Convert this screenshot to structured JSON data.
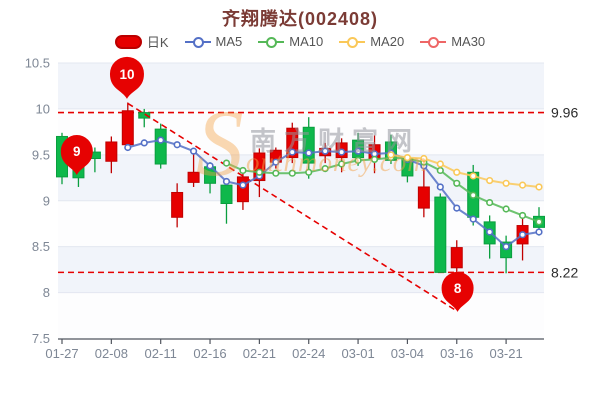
{
  "title": "齐翔腾达(002408)",
  "legend": [
    {
      "label": "日K",
      "type": "rect",
      "color": "#e60000"
    },
    {
      "label": "MA5",
      "type": "line",
      "color": "#5470c6"
    },
    {
      "label": "MA10",
      "type": "line",
      "color": "#55b857"
    },
    {
      "label": "MA20",
      "type": "line",
      "color": "#fac858"
    },
    {
      "label": "MA30",
      "type": "line",
      "color": "#ee6666"
    }
  ],
  "watermark": {
    "cn": "南方财富网",
    "s": "S",
    "en": "outhmoney.com"
  },
  "colors": {
    "title": "#7b3b35",
    "axis_label": "#7e8795",
    "axis_line": "#50555e",
    "grid_line": "#e3e7f0",
    "band_dark": "rgba(210,219,238,0.30)",
    "band_light": "rgba(252,252,254,0.60)",
    "candle_up_fill": "#e60000",
    "candle_up_stroke": "#c00000",
    "candle_down_fill": "#0eb84b",
    "candle_down_stroke": "#0a9e3f",
    "ref_line": "#e60000",
    "ref_label": "#2b2b2b",
    "pin_fill": "#e60202",
    "pin_text": "#ffffff"
  },
  "y_axis": {
    "min": 7.5,
    "max": 10.5,
    "ticks": [
      10.5,
      10,
      9.5,
      9,
      8.5,
      8,
      7.5
    ]
  },
  "x_axis": {
    "labels": [
      {
        "index": 0,
        "label": "01-27"
      },
      {
        "index": 3,
        "label": "02-08"
      },
      {
        "index": 6,
        "label": "02-11"
      },
      {
        "index": 9,
        "label": "02-16"
      },
      {
        "index": 12,
        "label": "02-21"
      },
      {
        "index": 15,
        "label": "02-24"
      },
      {
        "index": 18,
        "label": "03-01"
      },
      {
        "index": 21,
        "label": "03-04"
      },
      {
        "index": 24,
        "label": "03-16"
      },
      {
        "index": 27,
        "label": "03-21"
      }
    ]
  },
  "chart_data": {
    "type": "candlestick",
    "title": "齐翔腾达(002408)",
    "ylim": [
      7.5,
      10.5
    ],
    "grid": true,
    "legend_position": "top",
    "candles": [
      {
        "date": "01-27",
        "open": 9.7,
        "close": 9.26,
        "high": 9.74,
        "low": 9.18
      },
      {
        "date": "",
        "open": 9.4,
        "close": 9.25,
        "high": 9.44,
        "low": 9.15
      },
      {
        "date": "",
        "open": 9.53,
        "close": 9.46,
        "high": 9.58,
        "low": 9.31
      },
      {
        "date": "02-08",
        "open": 9.43,
        "close": 9.64,
        "high": 9.7,
        "low": 9.3
      },
      {
        "date": "",
        "open": 9.61,
        "close": 9.98,
        "high": 10.07,
        "low": 9.57
      },
      {
        "date": "",
        "open": 9.96,
        "close": 9.9,
        "high": 10.0,
        "low": 9.8
      },
      {
        "date": "02-11",
        "open": 9.78,
        "close": 9.4,
        "high": 9.84,
        "low": 9.35
      },
      {
        "date": "",
        "open": 8.82,
        "close": 9.09,
        "high": 9.19,
        "low": 8.71
      },
      {
        "date": "",
        "open": 9.2,
        "close": 9.31,
        "high": 9.52,
        "low": 9.15
      },
      {
        "date": "02-16",
        "open": 9.37,
        "close": 9.19,
        "high": 9.42,
        "low": 9.08
      },
      {
        "date": "",
        "open": 9.17,
        "close": 8.97,
        "high": 9.24,
        "low": 8.75
      },
      {
        "date": "",
        "open": 8.99,
        "close": 9.26,
        "high": 9.31,
        "low": 8.9
      },
      {
        "date": "02-21",
        "open": 9.22,
        "close": 9.52,
        "high": 9.57,
        "low": 9.04
      },
      {
        "date": "",
        "open": 9.42,
        "close": 9.55,
        "high": 9.58,
        "low": 9.35
      },
      {
        "date": "",
        "open": 9.47,
        "close": 9.79,
        "high": 9.85,
        "low": 9.41
      },
      {
        "date": "02-24",
        "open": 9.8,
        "close": 9.41,
        "high": 9.91,
        "low": 9.24
      },
      {
        "date": "",
        "open": 9.49,
        "close": 9.57,
        "high": 9.63,
        "low": 9.41
      },
      {
        "date": "",
        "open": 9.47,
        "close": 9.63,
        "high": 9.68,
        "low": 9.31
      },
      {
        "date": "03-01",
        "open": 9.66,
        "close": 9.47,
        "high": 9.74,
        "low": 9.38
      },
      {
        "date": "",
        "open": 9.46,
        "close": 9.61,
        "high": 9.71,
        "low": 9.3
      },
      {
        "date": "",
        "open": 9.64,
        "close": 9.44,
        "high": 9.72,
        "low": 9.4
      },
      {
        "date": "03-04",
        "open": 9.46,
        "close": 9.27,
        "high": 9.47,
        "low": 9.2
      },
      {
        "date": "",
        "open": 8.92,
        "close": 9.15,
        "high": 9.46,
        "low": 8.82
      },
      {
        "date": "",
        "open": 9.04,
        "close": 8.22,
        "high": 9.08,
        "low": 8.22
      },
      {
        "date": "03-16",
        "open": 8.27,
        "close": 8.49,
        "high": 8.57,
        "low": 8.19
      },
      {
        "date": "",
        "open": 9.31,
        "close": 8.82,
        "high": 9.39,
        "low": 8.73
      },
      {
        "date": "",
        "open": 8.77,
        "close": 8.53,
        "high": 8.84,
        "low": 8.37
      },
      {
        "date": "03-21",
        "open": 8.55,
        "close": 8.38,
        "high": 8.62,
        "low": 8.21
      },
      {
        "date": "",
        "open": 8.53,
        "close": 8.73,
        "high": 8.86,
        "low": 8.35
      },
      {
        "date": "",
        "open": 8.83,
        "close": 8.71,
        "high": 8.93,
        "low": 8.62
      }
    ],
    "series": [
      {
        "name": "MA5",
        "color": "#5470c6",
        "values": [
          null,
          null,
          null,
          null,
          9.58,
          9.63,
          9.66,
          9.61,
          9.54,
          9.38,
          9.21,
          9.17,
          9.27,
          9.42,
          9.53,
          9.52,
          9.54,
          9.53,
          9.54,
          9.51,
          9.52,
          9.45,
          9.38,
          9.15,
          8.92,
          8.8,
          8.66,
          8.5,
          8.63,
          8.66
        ]
      },
      {
        "name": "MA10",
        "color": "#55b857",
        "values": [
          null,
          null,
          null,
          null,
          null,
          null,
          null,
          null,
          null,
          null,
          9.41,
          9.33,
          9.31,
          9.3,
          9.3,
          9.31,
          9.35,
          9.4,
          9.44,
          9.45,
          9.47,
          9.46,
          9.42,
          9.33,
          9.19,
          9.06,
          8.98,
          8.91,
          8.84,
          8.77
        ]
      },
      {
        "name": "MA20",
        "color": "#fac858",
        "values": [
          null,
          null,
          null,
          null,
          null,
          null,
          null,
          null,
          null,
          null,
          null,
          null,
          null,
          null,
          null,
          null,
          null,
          null,
          null,
          null,
          9.5,
          9.47,
          9.46,
          9.4,
          9.31,
          9.27,
          9.22,
          9.19,
          9.17,
          9.15
        ]
      },
      {
        "name": "MA30",
        "color": "#ee6666",
        "values": [
          null,
          null,
          null,
          null,
          null,
          null,
          null,
          null,
          null,
          null,
          null,
          null,
          null,
          null,
          null,
          null,
          null,
          null,
          null,
          null,
          null,
          null,
          null,
          null,
          null,
          null,
          null,
          null,
          null,
          null
        ]
      }
    ],
    "ref_lines": [
      {
        "value": 9.96,
        "label": "9.96"
      },
      {
        "value": 8.22,
        "label": "8.22"
      }
    ],
    "trendline": {
      "from": {
        "index": 4,
        "price": 10.06
      },
      "to": {
        "index": 24,
        "price": 7.8
      }
    },
    "pins": [
      {
        "label": "9",
        "index": 0.9,
        "price": 9.28
      },
      {
        "label": "10",
        "index": 3.95,
        "price": 10.11
      },
      {
        "label": "8",
        "index": 24.05,
        "price": 7.79
      }
    ]
  }
}
